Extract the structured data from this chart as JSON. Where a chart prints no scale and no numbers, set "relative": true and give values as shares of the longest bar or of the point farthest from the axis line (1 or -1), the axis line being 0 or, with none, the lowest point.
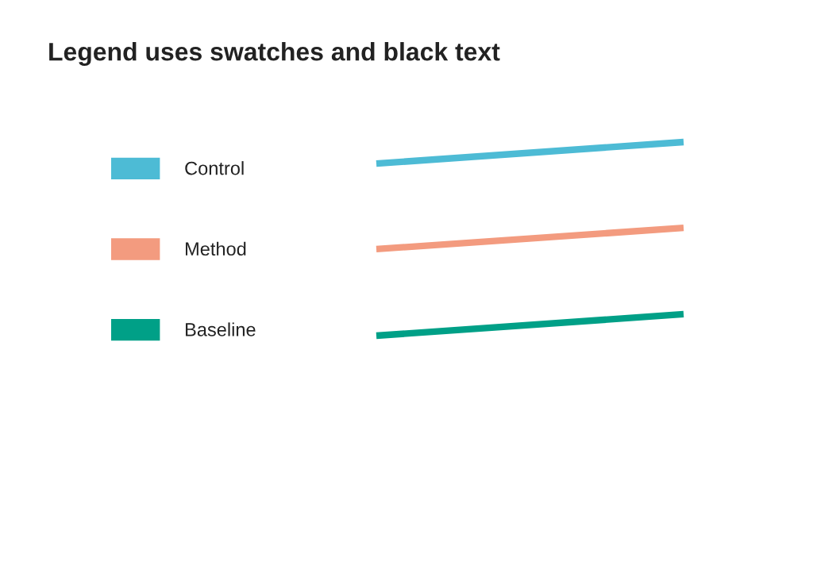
{
  "chart_data": {
    "type": "line",
    "title": "Legend uses swatches and black text",
    "relative": true,
    "categories": [
      null,
      null
    ],
    "legend": "left",
    "line_style": "solid",
    "series": [
      {
        "name": "Control",
        "color": "#4dbbd5",
        "values": [
          0.889,
          1.0
        ]
      },
      {
        "name": "Method",
        "color": "#f39b7f",
        "values": [
          0.447,
          0.557
        ]
      },
      {
        "name": "Baseline",
        "color": "#00a087",
        "values": [
          0,
          0.111
        ]
      }
    ]
  }
}
